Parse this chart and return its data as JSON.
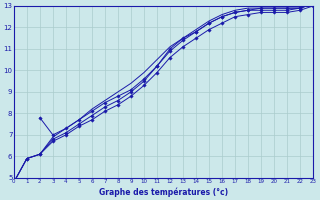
{
  "xlabel": "Graphe des températures (°c)",
  "bg_color": "#cce8ea",
  "line_color": "#1a1aaa",
  "grid_color": "#aacccc",
  "xmin": 0,
  "xmax": 23,
  "ymin": 5,
  "ymax": 13,
  "lines": [
    {
      "x": [
        0,
        1,
        2,
        3,
        4,
        5,
        6,
        7,
        8,
        9,
        10,
        11,
        12,
        13,
        14,
        15,
        16,
        17,
        18,
        19,
        20,
        21,
        22,
        23
      ],
      "y": [
        4.8,
        5.9,
        6.1,
        6.8,
        7.1,
        7.5,
        7.9,
        8.3,
        8.6,
        9.0,
        9.5,
        10.2,
        11.0,
        11.5,
        11.8,
        12.2,
        12.5,
        12.7,
        12.8,
        12.8,
        12.8,
        12.8,
        12.9,
        13.1
      ],
      "marker": true
    },
    {
      "x": [
        0,
        1,
        2,
        3,
        4,
        5,
        6,
        7,
        8,
        9,
        10,
        11,
        12,
        13,
        14,
        15,
        16,
        17,
        18,
        19,
        20,
        21,
        22,
        23
      ],
      "y": [
        4.8,
        5.9,
        6.1,
        6.9,
        7.3,
        7.7,
        8.2,
        8.6,
        9.0,
        9.4,
        9.9,
        10.5,
        11.1,
        11.5,
        11.9,
        12.3,
        12.6,
        12.8,
        12.9,
        12.9,
        12.9,
        12.9,
        12.9,
        13.1
      ],
      "marker": false
    },
    {
      "x": [
        2,
        3,
        4,
        5,
        6,
        7,
        8,
        9,
        10,
        11,
        12,
        13,
        14,
        15,
        16,
        17,
        18,
        19,
        20,
        21,
        22,
        23
      ],
      "y": [
        7.8,
        7.0,
        7.3,
        7.7,
        8.1,
        8.5,
        8.8,
        9.1,
        9.6,
        10.2,
        10.9,
        11.4,
        11.8,
        12.2,
        12.5,
        12.7,
        12.8,
        12.9,
        12.9,
        12.9,
        12.9,
        13.1
      ],
      "marker": true
    },
    {
      "x": [
        0,
        1,
        2,
        3,
        4,
        5,
        6,
        7,
        8,
        9,
        10,
        11,
        12,
        13,
        14,
        15,
        16,
        17,
        18,
        19,
        20,
        21,
        22,
        23
      ],
      "y": [
        4.8,
        5.9,
        6.1,
        6.7,
        7.0,
        7.4,
        7.7,
        8.1,
        8.4,
        8.8,
        9.3,
        9.9,
        10.6,
        11.1,
        11.5,
        11.9,
        12.2,
        12.5,
        12.6,
        12.7,
        12.7,
        12.7,
        12.8,
        13.0
      ],
      "marker": true
    }
  ]
}
